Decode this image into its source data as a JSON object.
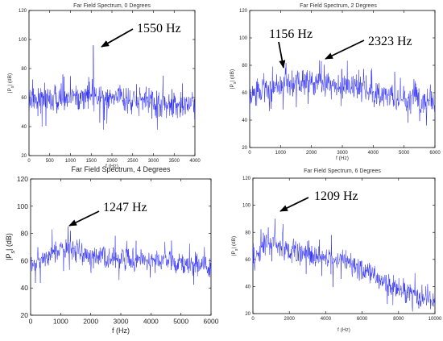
{
  "charts": [
    {
      "title": "Far Field Spectrum, 0 Degrees",
      "xlabel": "f (Hz)",
      "ylabel": "|Ps| (dB)",
      "ylabel_main": "|P",
      "ylabel_sub": "s",
      "ylabel_tail": "| (dB)",
      "annotation": "1550 Hz",
      "line_color": "#2b2bf5"
    },
    {
      "title": "Far Field Spectrum, 2 Degrees",
      "xlabel": "f (Hz)",
      "ylabel": "|Ps| (dB)",
      "ylabel_main": "|P",
      "ylabel_sub": "s",
      "ylabel_tail": "| (dB)",
      "annotations": [
        "1156 Hz",
        "2323 Hz"
      ],
      "line_color": "#2b2bf5"
    },
    {
      "title": "Far Field Spectrum, 4 Degrees",
      "xlabel": "f (Hz)",
      "ylabel": "|Ps| (dB)",
      "ylabel_main": "|P",
      "ylabel_sub": "s",
      "ylabel_tail": "| (dB)",
      "annotation": "1247 Hz",
      "line_color": "#2b2bf5"
    },
    {
      "title": "Far Field Spectrum, 6 Degrees",
      "xlabel": "f (Hz)",
      "ylabel": "|Ps| (dB)",
      "ylabel_main": "|P",
      "ylabel_sub": "s",
      "ylabel_tail": "| (dB)",
      "annotation": "1209 Hz",
      "line_color": "#2b2bf5"
    }
  ],
  "chart_data": [
    {
      "type": "line",
      "title": "Far Field Spectrum, 0 Degrees",
      "xlabel": "f (Hz)",
      "ylabel": "|Ps| (dB)",
      "xlim": [
        0,
        4000
      ],
      "ylim": [
        20,
        120
      ],
      "xticks": [
        0,
        500,
        1000,
        1500,
        2000,
        2500,
        3000,
        3500,
        4000
      ],
      "yticks": [
        20,
        40,
        60,
        80,
        100,
        120
      ],
      "envelope": {
        "f": [
          0,
          500,
          1000,
          1500,
          2000,
          2500,
          3000,
          3500,
          4000
        ],
        "level": [
          58,
          58,
          60,
          62,
          60,
          58,
          56,
          55,
          54
        ]
      },
      "spread": 7,
      "peaks": [
        {
          "f": 1550,
          "level": 96
        }
      ],
      "annotations": [
        {
          "text": "1550 Hz",
          "f": 1550,
          "level": 96
        }
      ]
    },
    {
      "type": "line",
      "title": "Far Field Spectrum, 2 Degrees",
      "xlabel": "f (Hz)",
      "ylabel": "|Ps| (dB)",
      "xlim": [
        0,
        6000
      ],
      "ylim": [
        20,
        120
      ],
      "xticks": [
        0,
        1000,
        2000,
        3000,
        4000,
        5000,
        6000
      ],
      "yticks": [
        20,
        40,
        60,
        80,
        100,
        120
      ],
      "envelope": {
        "f": [
          0,
          500,
          1000,
          1500,
          2000,
          2500,
          3000,
          3500,
          4000,
          4500,
          5000,
          5500,
          6000
        ],
        "level": [
          58,
          63,
          66,
          67,
          67,
          66,
          64,
          62,
          60,
          57,
          55,
          53,
          51
        ]
      },
      "spread": 7,
      "peaks": [
        {
          "f": 1156,
          "level": 78
        },
        {
          "f": 2323,
          "level": 83
        }
      ],
      "annotations": [
        {
          "text": "1156 Hz",
          "f": 1156,
          "level": 78
        },
        {
          "text": "2323 Hz",
          "f": 2323,
          "level": 83
        }
      ]
    },
    {
      "type": "line",
      "title": "Far Field Spectrum, 4 Degrees",
      "xlabel": "f (Hz)",
      "ylabel": "|Ps| (dB)",
      "xlim": [
        0,
        6000
      ],
      "ylim": [
        20,
        120
      ],
      "xticks": [
        0,
        1000,
        2000,
        3000,
        4000,
        5000,
        6000
      ],
      "yticks": [
        20,
        40,
        60,
        80,
        100,
        120
      ],
      "envelope": {
        "f": [
          0,
          500,
          1000,
          1500,
          2000,
          2500,
          3000,
          3500,
          4000,
          4500,
          5000,
          5500,
          6000
        ],
        "level": [
          56,
          62,
          68,
          67,
          64,
          62,
          62,
          61,
          60,
          59,
          58,
          57,
          55
        ]
      },
      "spread": 6,
      "peaks": [
        {
          "f": 1247,
          "level": 85
        }
      ],
      "annotations": [
        {
          "text": "1247 Hz",
          "f": 1247,
          "level": 85
        }
      ]
    },
    {
      "type": "line",
      "title": "Far Field Spectrum, 6 Degrees",
      "xlabel": "f (Hz)",
      "ylabel": "|Ps| (dB)",
      "xlim": [
        0,
        10000
      ],
      "ylim": [
        20,
        120
      ],
      "xticks": [
        0,
        2000,
        4000,
        6000,
        8000,
        10000
      ],
      "yticks": [
        20,
        40,
        60,
        80,
        100,
        120
      ],
      "envelope": {
        "f": [
          0,
          500,
          1000,
          1500,
          2000,
          3000,
          4000,
          5000,
          6000,
          7000,
          8000,
          9000,
          10000
        ],
        "level": [
          55,
          68,
          72,
          70,
          66,
          64,
          62,
          60,
          52,
          43,
          37,
          33,
          29
        ]
      },
      "spread": 6,
      "peaks": [
        {
          "f": 1209,
          "level": 90
        }
      ],
      "annotations": [
        {
          "text": "1209 Hz",
          "f": 1209,
          "level": 90
        }
      ]
    }
  ]
}
